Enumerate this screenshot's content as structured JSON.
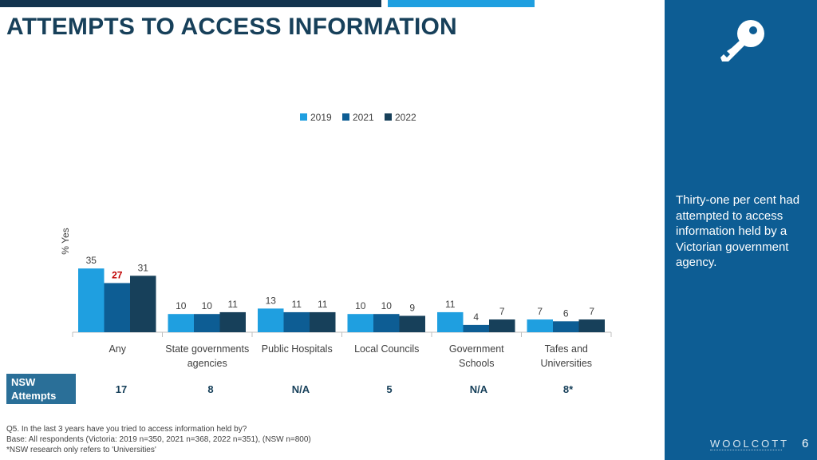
{
  "title": "ATTEMPTS TO ACCESS INFORMATION",
  "side_text": "Thirty-one per cent had attempted to access information held by a Victorian government agency.",
  "brand": "WOOLCOTT",
  "page_number": "6",
  "colors": {
    "2019": "#1f9fe0",
    "2021": "#0d5d94",
    "2022": "#17405a",
    "highlight": "#c00000",
    "side_panel": "#0d5d94"
  },
  "icons": {
    "side": "key-icon"
  },
  "nsw": {
    "label_line1": "NSW",
    "label_line2": "Attempts",
    "values": [
      "17",
      "8",
      "N/A",
      "5",
      "N/A",
      "8*"
    ]
  },
  "footnote": {
    "line1": "Q5. In the last 3 years have you tried to access information held by?",
    "line2": "Base: All respondents (Victoria: 2019 n=350, 2021 n=368, 2022 n=351), (NSW n=800)",
    "line3": "*NSW research only refers to 'Universities'"
  },
  "chart_data": {
    "type": "bar",
    "ylabel": "% Yes",
    "ylim": [
      0,
      45
    ],
    "grid": false,
    "legend_position": "top-center",
    "categories": [
      [
        "Any"
      ],
      [
        "State governments",
        "agencies"
      ],
      [
        "Public Hospitals"
      ],
      [
        "Local Councils"
      ],
      [
        "Government",
        "Schools"
      ],
      [
        "Tafes and",
        "Universities"
      ]
    ],
    "series": [
      {
        "name": "2019",
        "values": [
          35,
          10,
          13,
          10,
          11,
          7
        ]
      },
      {
        "name": "2021",
        "values": [
          27,
          10,
          11,
          10,
          4,
          6
        ]
      },
      {
        "name": "2022",
        "values": [
          31,
          11,
          11,
          9,
          7,
          7
        ]
      }
    ],
    "highlighted_labels": [
      {
        "series": "2021",
        "category_index": 0,
        "color": "#c00000"
      }
    ]
  }
}
